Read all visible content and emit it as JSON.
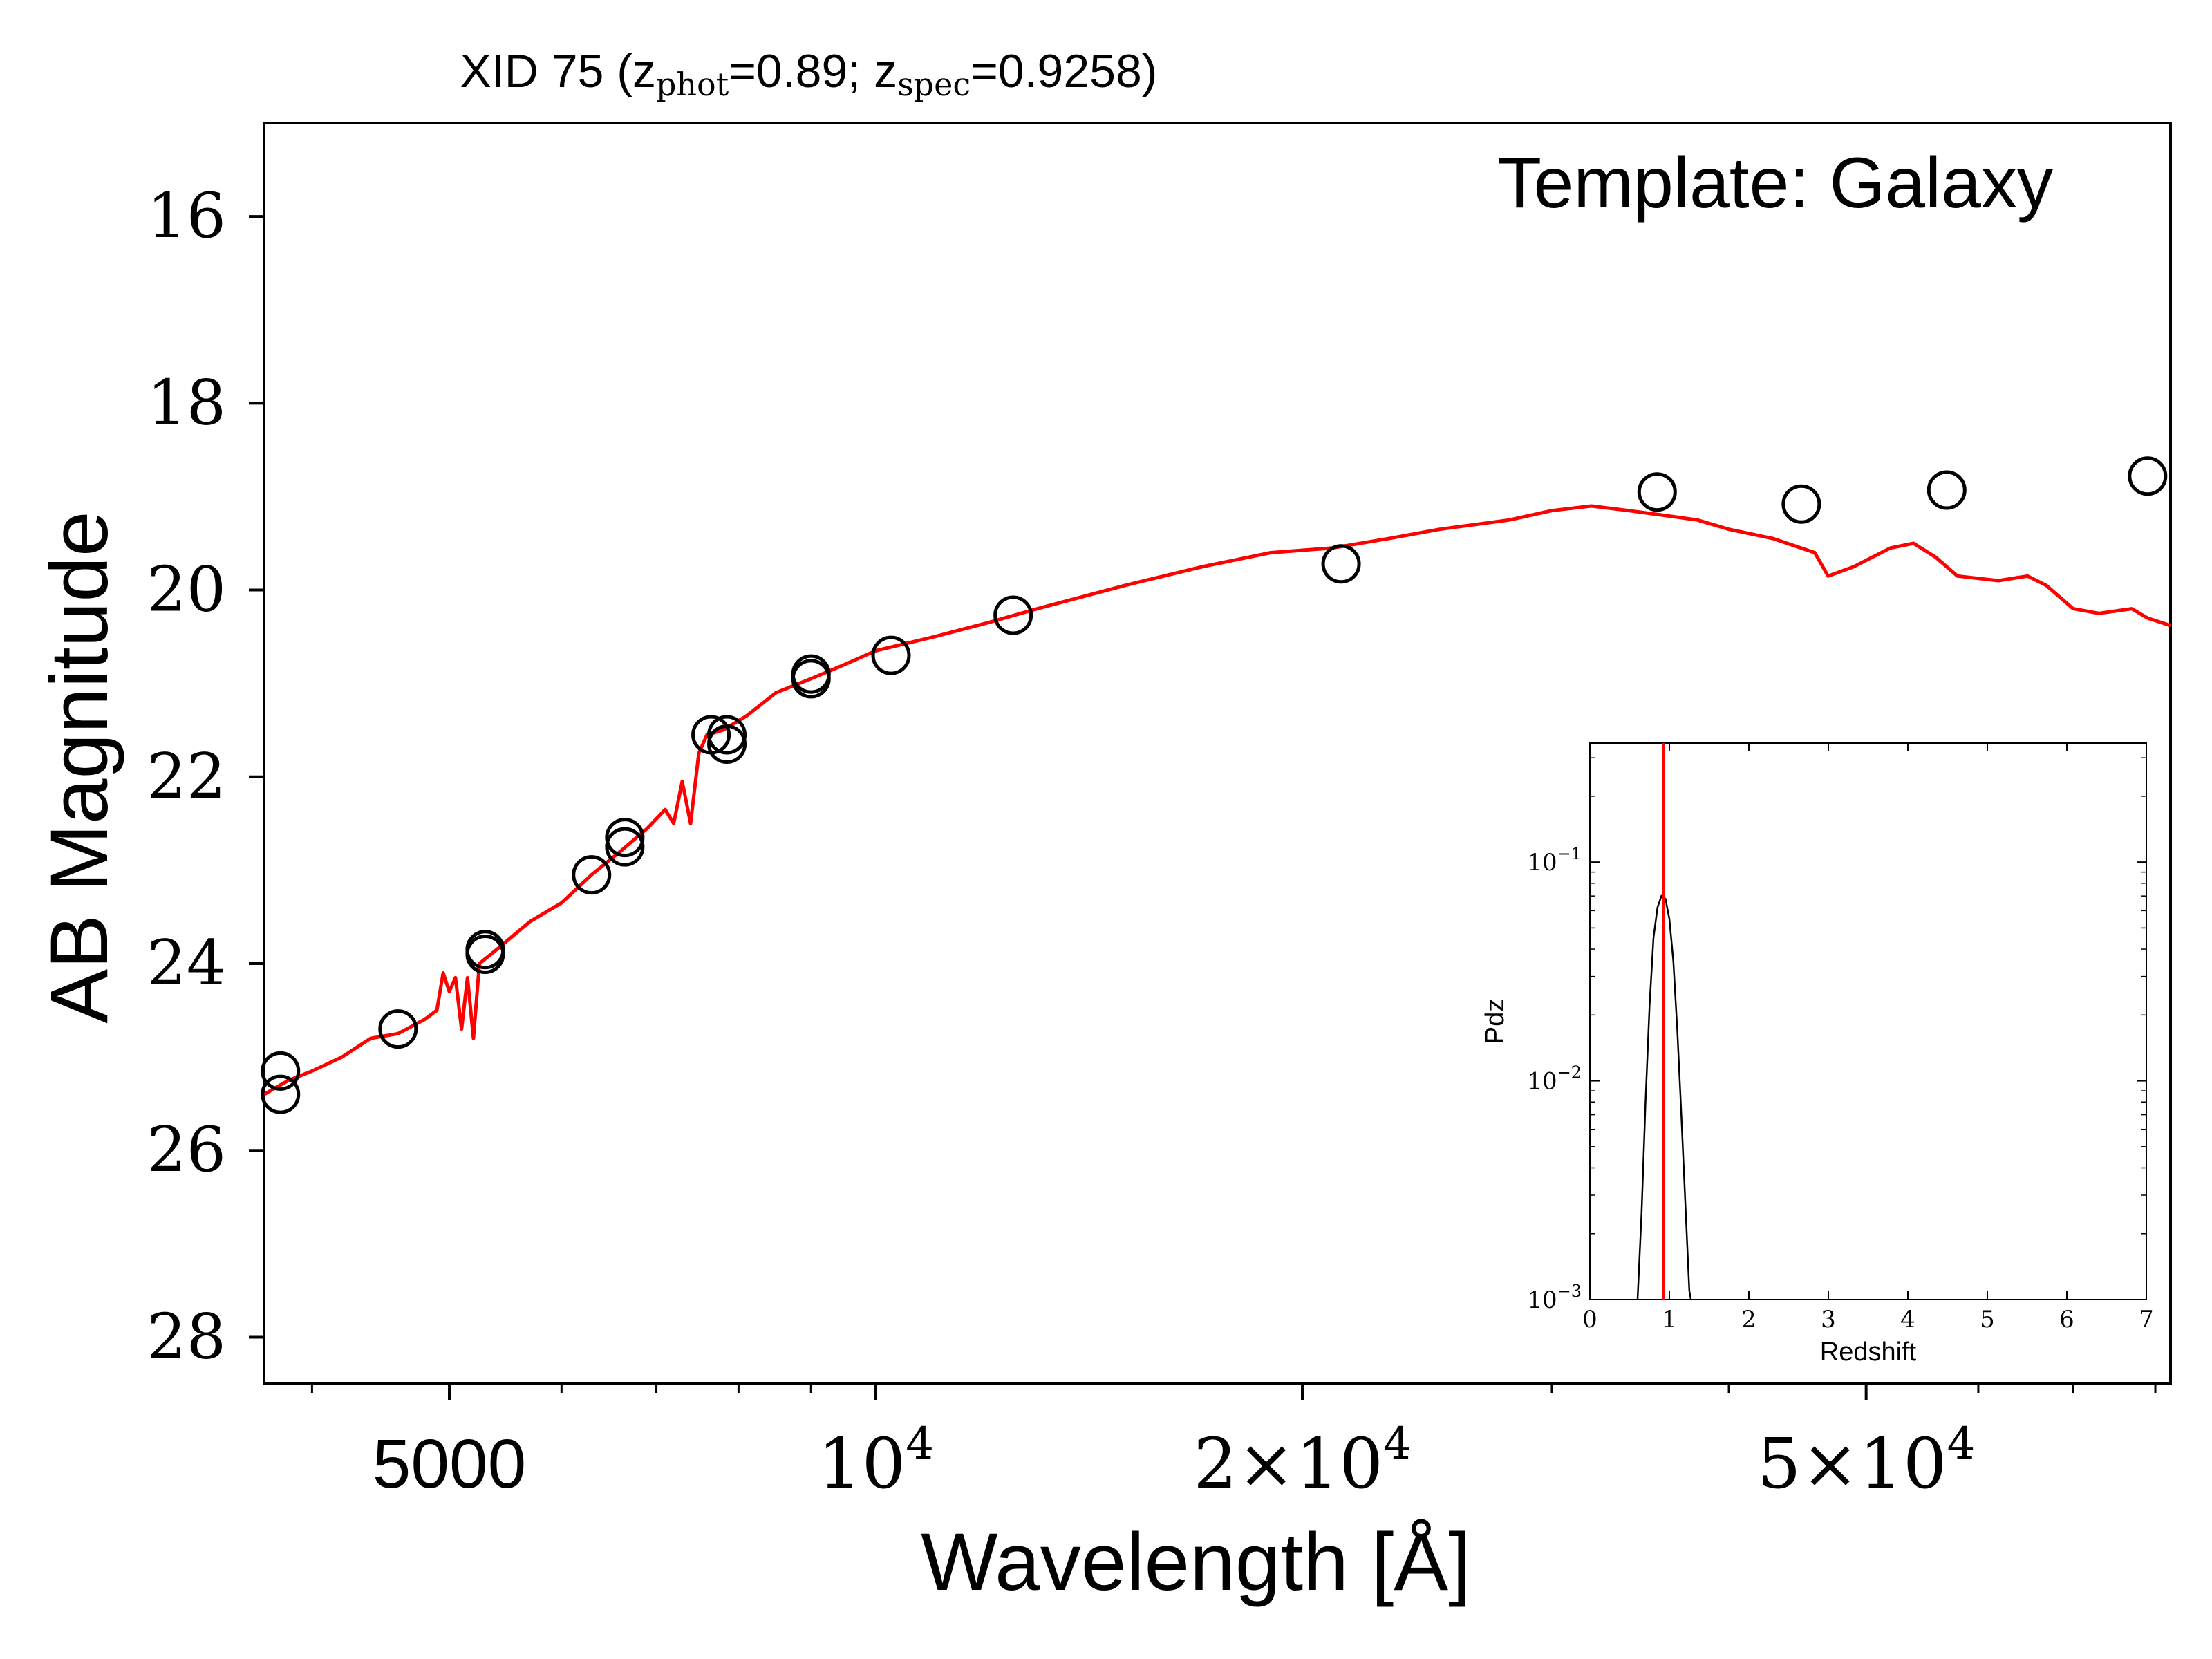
{
  "chart_data": {
    "type": "scatter",
    "title_main": "XID 75 (z",
    "title_phot_sub": "phot",
    "title_mid": "=0.89; z",
    "title_spec_sub": "spec",
    "title_end": "=0.9258)",
    "annotation": "Template: Galaxy",
    "xlabel": "Wavelength [Å]",
    "ylabel": "AB Magnitude",
    "x_scale": "log",
    "xlim": [
      3700,
      82000
    ],
    "ylim": [
      28.5,
      15
    ],
    "y_inverted": true,
    "yticks": [
      16,
      18,
      20,
      22,
      24,
      26,
      28
    ],
    "xticks": [
      {
        "value": 5000,
        "mant": "5000",
        "exp": ""
      },
      {
        "value": 10000,
        "mant": "10",
        "exp": "4"
      },
      {
        "value": 20000,
        "mant": "2×10",
        "exp": "4"
      },
      {
        "value": 50000,
        "mant": "5×10",
        "exp": "4"
      }
    ],
    "x_minor_ticks": [
      4000,
      6000,
      7000,
      8000,
      9000,
      30000,
      40000,
      60000,
      70000,
      80000
    ],
    "series": [
      {
        "type": "scatter",
        "marker": "open-circle",
        "points": [
          {
            "x": 3800,
            "y": 25.15
          },
          {
            "x": 3800,
            "y": 25.4
          },
          {
            "x": 4600,
            "y": 24.7
          },
          {
            "x": 5300,
            "y": 23.85
          },
          {
            "x": 5300,
            "y": 23.9
          },
          {
            "x": 6300,
            "y": 23.05
          },
          {
            "x": 6650,
            "y": 22.65
          },
          {
            "x": 6650,
            "y": 22.75
          },
          {
            "x": 7650,
            "y": 21.55
          },
          {
            "x": 7850,
            "y": 21.55
          },
          {
            "x": 7850,
            "y": 21.65
          },
          {
            "x": 9000,
            "y": 20.9
          },
          {
            "x": 9000,
            "y": 20.95
          },
          {
            "x": 10250,
            "y": 20.7
          },
          {
            "x": 12500,
            "y": 20.27
          },
          {
            "x": 21300,
            "y": 19.72
          },
          {
            "x": 35600,
            "y": 18.95
          },
          {
            "x": 45000,
            "y": 19.08
          },
          {
            "x": 57000,
            "y": 18.93
          },
          {
            "x": 79000,
            "y": 18.78
          }
        ]
      },
      {
        "type": "line",
        "color": "#ff0000",
        "points": [
          [
            3700,
            25.4
          ],
          [
            3850,
            25.25
          ],
          [
            4000,
            25.15
          ],
          [
            4200,
            25.0
          ],
          [
            4400,
            24.8
          ],
          [
            4600,
            24.75
          ],
          [
            4800,
            24.6
          ],
          [
            4900,
            24.5
          ],
          [
            4950,
            24.1
          ],
          [
            5000,
            24.3
          ],
          [
            5050,
            24.15
          ],
          [
            5100,
            24.7
          ],
          [
            5150,
            24.15
          ],
          [
            5200,
            24.8
          ],
          [
            5250,
            24.0
          ],
          [
            5400,
            23.85
          ],
          [
            5700,
            23.55
          ],
          [
            6000,
            23.35
          ],
          [
            6300,
            23.05
          ],
          [
            6600,
            22.8
          ],
          [
            6900,
            22.55
          ],
          [
            7100,
            22.35
          ],
          [
            7200,
            22.5
          ],
          [
            7300,
            22.05
          ],
          [
            7400,
            22.5
          ],
          [
            7500,
            21.75
          ],
          [
            7600,
            21.55
          ],
          [
            7800,
            21.5
          ],
          [
            8100,
            21.35
          ],
          [
            8500,
            21.1
          ],
          [
            9000,
            20.95
          ],
          [
            9500,
            20.8
          ],
          [
            10000,
            20.65
          ],
          [
            11000,
            20.5
          ],
          [
            12000,
            20.35
          ],
          [
            13000,
            20.2
          ],
          [
            15000,
            19.95
          ],
          [
            17000,
            19.75
          ],
          [
            19000,
            19.6
          ],
          [
            21000,
            19.55
          ],
          [
            23000,
            19.45
          ],
          [
            25000,
            19.35
          ],
          [
            28000,
            19.25
          ],
          [
            30000,
            19.15
          ],
          [
            32000,
            19.1
          ],
          [
            34000,
            19.15
          ],
          [
            36000,
            19.2
          ],
          [
            38000,
            19.25
          ],
          [
            40000,
            19.35
          ],
          [
            43000,
            19.45
          ],
          [
            46000,
            19.6
          ],
          [
            47000,
            19.85
          ],
          [
            49000,
            19.75
          ],
          [
            52000,
            19.55
          ],
          [
            54000,
            19.5
          ],
          [
            56000,
            19.65
          ],
          [
            58000,
            19.85
          ],
          [
            62000,
            19.9
          ],
          [
            65000,
            19.85
          ],
          [
            67000,
            19.95
          ],
          [
            70000,
            20.2
          ],
          [
            73000,
            20.25
          ],
          [
            77000,
            20.2
          ],
          [
            79000,
            20.3
          ],
          [
            82000,
            20.38
          ]
        ]
      }
    ],
    "inset": {
      "type": "line",
      "xlabel": "Redshift",
      "ylabel": "Pdz",
      "y_scale": "log",
      "xlim": [
        0,
        7
      ],
      "ylim": [
        0.001,
        0.35
      ],
      "xticks": [
        0,
        1,
        2,
        3,
        4,
        5,
        6,
        7
      ],
      "yticks": [
        {
          "value": 0.1,
          "exp": "−1"
        },
        {
          "value": 0.01,
          "exp": "−2"
        },
        {
          "value": 0.001,
          "exp": "−3"
        }
      ],
      "vline_x": 0.9258,
      "vline_color": "#ff0000",
      "pdz_points": [
        [
          0.6,
          0.001
        ],
        [
          0.65,
          0.0025
        ],
        [
          0.7,
          0.008
        ],
        [
          0.75,
          0.022
        ],
        [
          0.8,
          0.045
        ],
        [
          0.85,
          0.062
        ],
        [
          0.9,
          0.07
        ],
        [
          0.95,
          0.068
        ],
        [
          1.0,
          0.055
        ],
        [
          1.05,
          0.035
        ],
        [
          1.1,
          0.017
        ],
        [
          1.15,
          0.007
        ],
        [
          1.2,
          0.0028
        ],
        [
          1.25,
          0.0011
        ],
        [
          1.27,
          0.001
        ]
      ]
    }
  }
}
